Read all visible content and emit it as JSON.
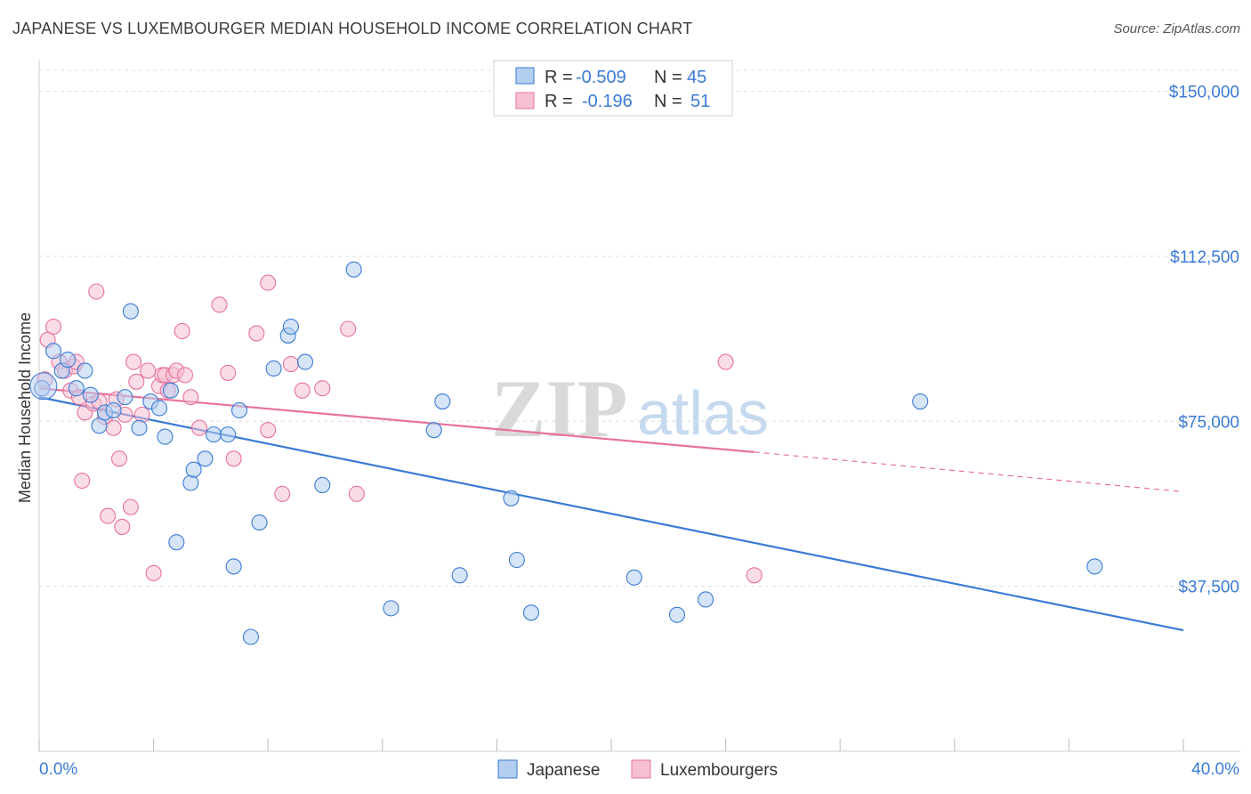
{
  "header": {
    "title": "JAPANESE VS LUXEMBOURGER MEDIAN HOUSEHOLD INCOME CORRELATION CHART",
    "source": "Source: ZipAtlas.com"
  },
  "legend": {
    "rows": [
      {
        "r_label": "R =",
        "r_value": "-0.509",
        "n_label": "N =",
        "n_value": "45"
      },
      {
        "r_label": "R =",
        "r_value": "-0.196",
        "n_label": "N =",
        "n_value": "51"
      }
    ]
  },
  "watermark": {
    "zip": "ZIP",
    "atlas": "atlas"
  },
  "chart_data": {
    "type": "scatter",
    "ylabel": "Median Household Income",
    "xlim": [
      0,
      40
    ],
    "ylim": [
      0,
      157000
    ],
    "x_tick_labels": [
      "0.0%",
      "40.0%"
    ],
    "y_ticks": [
      37500,
      75000,
      112500,
      150000
    ],
    "y_tick_labels": [
      "$37,500",
      "$75,000",
      "$112,500",
      "$150,000"
    ],
    "grid": true,
    "legend_position": "bottom-center",
    "colors": {
      "japanese": "#3a7bd5",
      "luxembourger": "#e8729a",
      "japanese_fill": "#b3cef0",
      "luxembourger_fill": "#f6c0d1"
    },
    "series": [
      {
        "name": "Japanese",
        "trend": {
          "x0": 0,
          "y0": 80500,
          "x1": 40,
          "y1": 27500
        },
        "points": [
          [
            0.1,
            82500
          ],
          [
            0.5,
            91000
          ],
          [
            0.8,
            86500
          ],
          [
            1.0,
            89000
          ],
          [
            1.3,
            82500
          ],
          [
            1.6,
            86500
          ],
          [
            1.8,
            81000
          ],
          [
            2.1,
            74000
          ],
          [
            2.3,
            77000
          ],
          [
            2.6,
            77500
          ],
          [
            3.0,
            80500
          ],
          [
            3.2,
            100000
          ],
          [
            3.5,
            73500
          ],
          [
            3.9,
            79500
          ],
          [
            4.2,
            78000
          ],
          [
            4.4,
            71500
          ],
          [
            4.6,
            82000
          ],
          [
            4.8,
            47500
          ],
          [
            5.3,
            61000
          ],
          [
            5.4,
            64000
          ],
          [
            5.8,
            66500
          ],
          [
            6.1,
            72000
          ],
          [
            6.6,
            72000
          ],
          [
            6.8,
            42000
          ],
          [
            7.0,
            77500
          ],
          [
            7.4,
            26000
          ],
          [
            7.7,
            52000
          ],
          [
            8.2,
            87000
          ],
          [
            8.7,
            94500
          ],
          [
            8.8,
            96500
          ],
          [
            9.3,
            88500
          ],
          [
            9.9,
            60500
          ],
          [
            11.0,
            109500
          ],
          [
            12.3,
            32500
          ],
          [
            13.8,
            73000
          ],
          [
            14.1,
            79500
          ],
          [
            14.7,
            40000
          ],
          [
            16.5,
            57500
          ],
          [
            16.7,
            43500
          ],
          [
            17.2,
            31500
          ],
          [
            20.8,
            39500
          ],
          [
            22.3,
            31000
          ],
          [
            23.3,
            34500
          ],
          [
            30.8,
            79500
          ],
          [
            36.9,
            42000
          ]
        ]
      },
      {
        "name": "Luxembourgers",
        "trend": {
          "x0": 0,
          "y0": 82500,
          "x1": 25,
          "y1": 68000
        },
        "trend_dashed": {
          "x0": 25,
          "y0": 68000,
          "x1": 40,
          "y1": 59000
        },
        "points": [
          [
            0.3,
            93500
          ],
          [
            0.5,
            96500
          ],
          [
            0.7,
            88500
          ],
          [
            0.9,
            86500
          ],
          [
            1.1,
            82000
          ],
          [
            1.2,
            87500
          ],
          [
            1.3,
            88500
          ],
          [
            1.4,
            80500
          ],
          [
            1.6,
            77000
          ],
          [
            1.9,
            79000
          ],
          [
            2.0,
            104500
          ],
          [
            2.3,
            76000
          ],
          [
            2.4,
            53500
          ],
          [
            2.6,
            73500
          ],
          [
            2.7,
            80000
          ],
          [
            2.8,
            66500
          ],
          [
            2.9,
            51000
          ],
          [
            3.2,
            55500
          ],
          [
            3.3,
            88500
          ],
          [
            3.4,
            84000
          ],
          [
            3.6,
            76500
          ],
          [
            3.8,
            86500
          ],
          [
            4.0,
            40500
          ],
          [
            4.2,
            83000
          ],
          [
            4.3,
            85500
          ],
          [
            4.4,
            85500
          ],
          [
            4.5,
            82000
          ],
          [
            4.7,
            85500
          ],
          [
            4.8,
            86500
          ],
          [
            5.0,
            95500
          ],
          [
            5.1,
            85500
          ],
          [
            5.3,
            80500
          ],
          [
            5.6,
            73500
          ],
          [
            6.3,
            101500
          ],
          [
            6.6,
            86000
          ],
          [
            6.8,
            66500
          ],
          [
            7.6,
            95000
          ],
          [
            8.0,
            106500
          ],
          [
            8.0,
            73000
          ],
          [
            8.5,
            58500
          ],
          [
            8.8,
            88000
          ],
          [
            9.2,
            82000
          ],
          [
            9.9,
            82500
          ],
          [
            10.8,
            96000
          ],
          [
            11.1,
            58500
          ],
          [
            24.0,
            88500
          ],
          [
            25.0,
            40000
          ],
          [
            1.5,
            61500
          ],
          [
            2.1,
            79500
          ],
          [
            0.2,
            84500
          ],
          [
            3.0,
            76500
          ]
        ]
      }
    ]
  }
}
